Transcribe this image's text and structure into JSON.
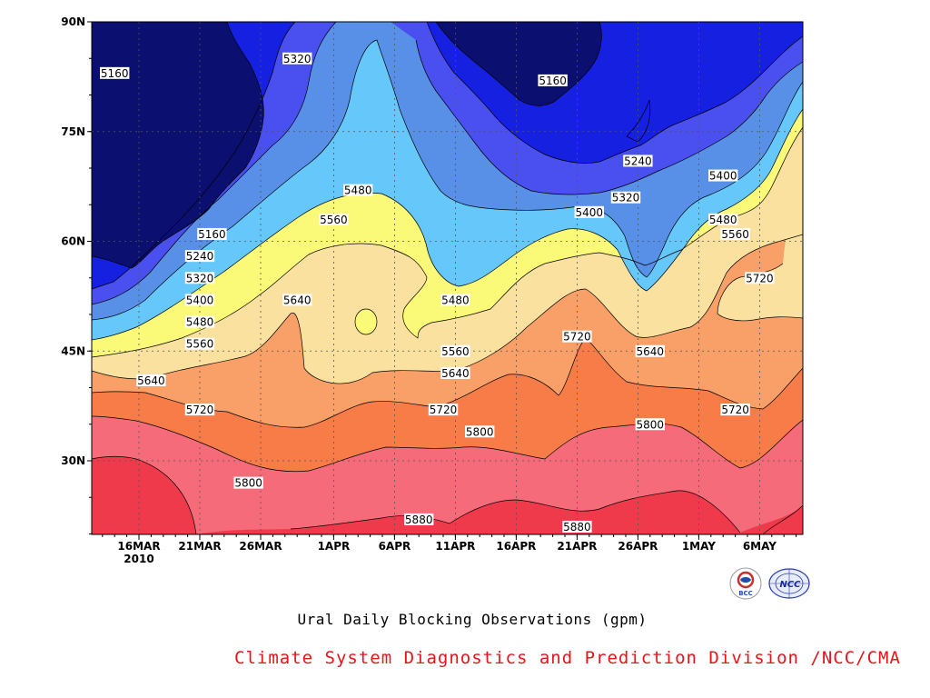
{
  "chart_data": {
    "type": "heatmap",
    "subtype": "filled-contour",
    "title": "Ural Daily Blocking Observations (gpm)",
    "credit": "Climate System Diagnostics and Prediction Division /NCC/CMA",
    "y_ticks": [
      "30N",
      "45N",
      "60N",
      "75N",
      "90N"
    ],
    "x_ticks": [
      "16MAR",
      "21MAR",
      "26MAR",
      "1APR",
      "6APR",
      "11APR",
      "16APR",
      "21APR",
      "26APR",
      "1MAY",
      "6MAY"
    ],
    "year_label": "2010",
    "grid": true,
    "contour_levels": [
      5160,
      5240,
      5320,
      5400,
      5480,
      5560,
      5640,
      5720,
      5800,
      5880
    ],
    "band_colors": [
      "#0b1070",
      "#1520e0",
      "#4a4ff0",
      "#5890e8",
      "#66c8fa",
      "#fafa78",
      "#fae1a0",
      "#f9a068",
      "#f77c48",
      "#f56b7a",
      "#ef3a4c"
    ],
    "contour_labels": [
      {
        "value": 5160,
        "x_date": "14MAR",
        "lat": 83
      },
      {
        "value": 5320,
        "x_date": "29MAR",
        "lat": 85
      },
      {
        "value": 5160,
        "x_date": "19APR",
        "lat": 82
      },
      {
        "value": 5240,
        "x_date": "26APR",
        "lat": 71
      },
      {
        "value": 5400,
        "x_date": "3MAY",
        "lat": 69
      },
      {
        "value": 5480,
        "x_date": "3APR",
        "lat": 67
      },
      {
        "value": 5320,
        "x_date": "25APR",
        "lat": 66
      },
      {
        "value": 5400,
        "x_date": "22APR",
        "lat": 64
      },
      {
        "value": 5160,
        "x_date": "22MAR",
        "lat": 61
      },
      {
        "value": 5560,
        "x_date": "1APR",
        "lat": 63
      },
      {
        "value": 5480,
        "x_date": "3MAY",
        "lat": 63
      },
      {
        "value": 5560,
        "x_date": "4MAY",
        "lat": 61
      },
      {
        "value": 5240,
        "x_date": "21MAR",
        "lat": 58
      },
      {
        "value": 5720,
        "x_date": "6MAY",
        "lat": 55
      },
      {
        "value": 5320,
        "x_date": "21MAR",
        "lat": 55
      },
      {
        "value": 5400,
        "x_date": "21MAR",
        "lat": 52
      },
      {
        "value": 5480,
        "x_date": "11APR",
        "lat": 52
      },
      {
        "value": 5640,
        "x_date": "29MAR",
        "lat": 52
      },
      {
        "value": 5480,
        "x_date": "21MAR",
        "lat": 49
      },
      {
        "value": 5720,
        "x_date": "21APR",
        "lat": 47
      },
      {
        "value": 5560,
        "x_date": "21MAR",
        "lat": 46
      },
      {
        "value": 5560,
        "x_date": "11APR",
        "lat": 45
      },
      {
        "value": 5640,
        "x_date": "27APR",
        "lat": 45
      },
      {
        "value": 5640,
        "x_date": "17MAR",
        "lat": 41
      },
      {
        "value": 5640,
        "x_date": "11APR",
        "lat": 42
      },
      {
        "value": 5720,
        "x_date": "21MAR",
        "lat": 37
      },
      {
        "value": 5720,
        "x_date": "10APR",
        "lat": 37
      },
      {
        "value": 5720,
        "x_date": "4MAY",
        "lat": 37
      },
      {
        "value": 5800,
        "x_date": "27APR",
        "lat": 35
      },
      {
        "value": 5800,
        "x_date": "13APR",
        "lat": 34
      },
      {
        "value": 5800,
        "x_date": "25MAR",
        "lat": 27
      },
      {
        "value": 5880,
        "x_date": "8APR",
        "lat": 22
      },
      {
        "value": 5880,
        "x_date": "21APR",
        "lat": 21
      }
    ]
  },
  "logos": [
    {
      "name": "bcc-logo-icon",
      "text": "BCC"
    },
    {
      "name": "ncc-logo-icon",
      "text": "NCC"
    }
  ]
}
